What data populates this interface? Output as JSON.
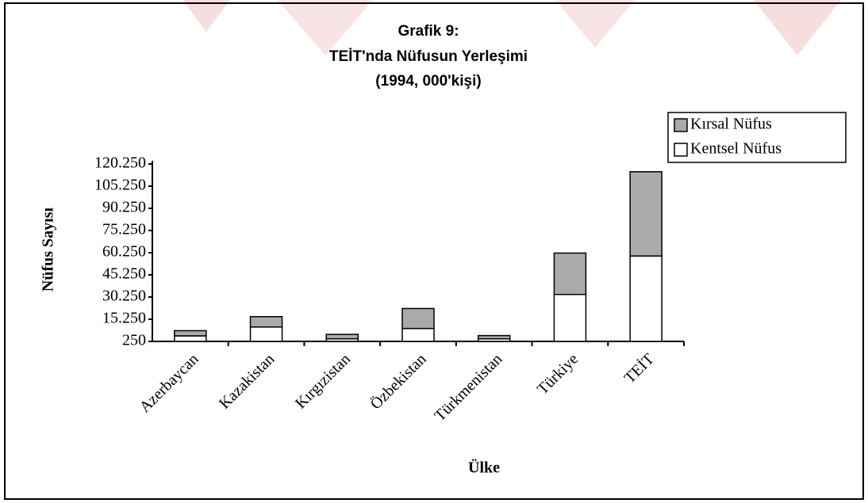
{
  "chart_data": {
    "type": "bar",
    "stacked": true,
    "title": [
      "Grafik 9:",
      "TEİT'nda Nüfusun Yerleşimi",
      "(1994, 000'kişi)"
    ],
    "x_label": "Ülke",
    "y_label": "Nüfus Sayısı",
    "categories": [
      "Azerbaycan",
      "Kazakistan",
      "Kırgızistan",
      "Özbekistan",
      "Türkmenistan",
      "Türkiye",
      "TEİT"
    ],
    "series": [
      {
        "name": "Kentsel Nüfus",
        "color": "#ffffff",
        "values": [
          4000,
          10000,
          2000,
          9000,
          2000,
          32000,
          58000
        ]
      },
      {
        "name": "Kırsal Nüfus",
        "color": "#aaaaaa",
        "values": [
          3500,
          7000,
          3000,
          13500,
          2200,
          28000,
          57000
        ]
      }
    ],
    "ylim": [
      250,
      120250
    ],
    "yticks": [
      250,
      {
        "value": 15250,
        "label": "15.250"
      },
      {
        "value": 30250,
        "label": "30.250"
      },
      {
        "value": 45250,
        "label": "45.250"
      },
      {
        "value": 60250,
        "label": "60.250"
      },
      {
        "value": 75250,
        "label": "75.250"
      },
      {
        "value": 90250,
        "label": "90.250"
      },
      {
        "value": 105250,
        "label": "105.250"
      },
      {
        "value": 120250,
        "label": "120.250"
      }
    ],
    "legend": "top-right"
  }
}
